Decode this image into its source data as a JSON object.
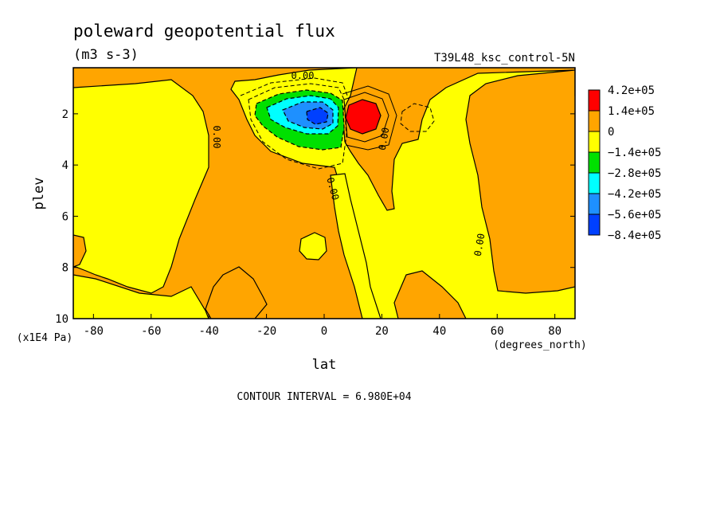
{
  "chart_data": {
    "type": "heatmap",
    "title": "poleward geopotential flux",
    "units": "(m3 s-3)",
    "dataset": "T39L48_ksc_control-5N",
    "xlabel": "lat",
    "xunits": "(degrees_north)",
    "ylabel": "plev",
    "yunits": "(x1E4 Pa)",
    "x_ticks": [
      "-80",
      "-60",
      "-40",
      "-20",
      "0",
      "20",
      "40",
      "60",
      "80"
    ],
    "y_ticks": [
      "2",
      "4",
      "6",
      "8",
      "10"
    ],
    "xlim": [
      -87,
      87
    ],
    "ylim": [
      0.2,
      10
    ],
    "contour_interval": "CONTOUR INTERVAL = 6.980E+04",
    "contour_labels": [
      "0.00",
      "0.00",
      "0.00",
      "0.00",
      "0.00"
    ],
    "legend": {
      "labels": [
        "4.2e+05",
        "1.4e+05",
        "0",
        "−1.4e+05",
        "−2.8e+05",
        "−4.2e+05",
        "−5.6e+05",
        "−8.4e+05"
      ],
      "colors": [
        "#ff0000",
        "#ffa500",
        "#ffff00",
        "#00e000",
        "#00ffff",
        "#1e90ff",
        "#0040ff"
      ]
    },
    "features": [
      {
        "kind": "min",
        "lat": -3,
        "plev": 2.0,
        "value": -840000
      },
      {
        "kind": "max",
        "lat": 12,
        "plev": 1.9,
        "value": 420000
      },
      {
        "kind": "weak-min",
        "lat": 32,
        "plev": 2.1,
        "value": -70000
      }
    ]
  }
}
